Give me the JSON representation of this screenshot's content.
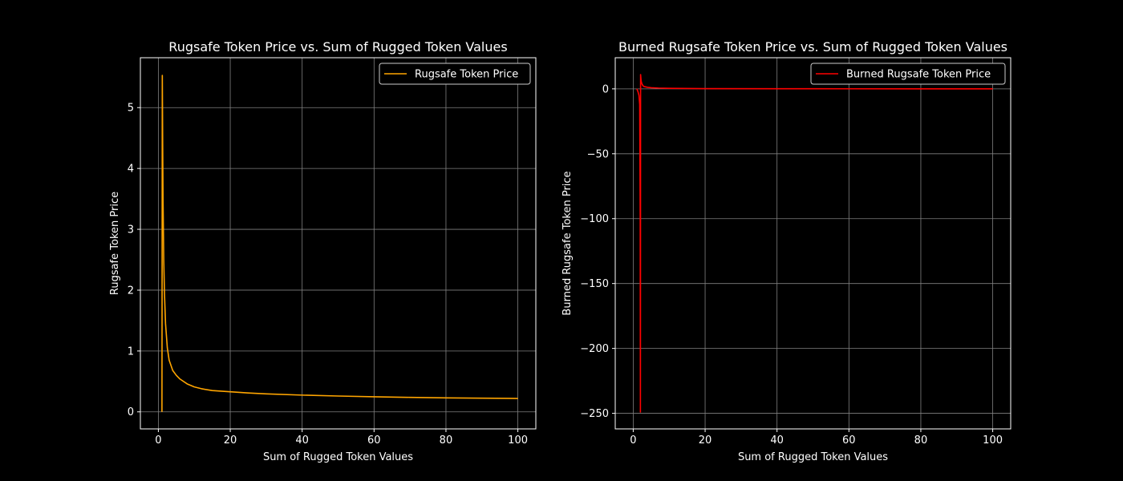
{
  "colors": {
    "background": "#000000",
    "grid": "#808080",
    "axes": "#ffffff",
    "text": "#ffffff"
  },
  "chart_data": [
    {
      "type": "line",
      "title": "Rugsafe Token Price vs. Sum of Rugged Token Values",
      "xlabel": "Sum of Rugged Token Values",
      "ylabel": "Rugsafe Token Price",
      "xlim": [
        -5,
        105
      ],
      "ylim": [
        -0.28,
        5.82
      ],
      "xticks": [
        0,
        20,
        40,
        60,
        80,
        100
      ],
      "xtick_labels": [
        "0",
        "20",
        "40",
        "60",
        "80",
        "100"
      ],
      "yticks": [
        0,
        1,
        2,
        3,
        4,
        5
      ],
      "ytick_labels": [
        "0",
        "1",
        "2",
        "3",
        "4",
        "5"
      ],
      "grid": true,
      "legend_position": "upper right",
      "series": [
        {
          "name": "Rugsafe Token Price",
          "color": "#ffa500",
          "x": [
            1.0,
            1.1,
            1.2,
            1.3,
            1.5,
            1.7,
            2,
            2.5,
            3,
            4,
            5,
            6,
            8,
            10,
            12,
            15,
            20,
            25,
            30,
            40,
            50,
            60,
            70,
            80,
            90,
            100
          ],
          "y": [
            0.0,
            5.53,
            4.4,
            3.5,
            2.5,
            1.95,
            1.45,
            1.05,
            0.85,
            0.68,
            0.6,
            0.54,
            0.46,
            0.41,
            0.38,
            0.35,
            0.33,
            0.31,
            0.295,
            0.275,
            0.26,
            0.248,
            0.238,
            0.23,
            0.225,
            0.22
          ]
        }
      ]
    },
    {
      "type": "line",
      "title": "Burned Rugsafe Token Price vs. Sum of Rugged Token Values",
      "xlabel": "Sum of Rugged Token Values",
      "ylabel": "Burned Rugsafe Token Price",
      "xlim": [
        -5,
        105
      ],
      "ylim": [
        -262,
        24
      ],
      "xticks": [
        0,
        20,
        40,
        60,
        80,
        100
      ],
      "xtick_labels": [
        "0",
        "20",
        "40",
        "60",
        "80",
        "100"
      ],
      "yticks": [
        0,
        -50,
        -100,
        -150,
        -200,
        -250
      ],
      "ytick_labels": [
        "0",
        "−50",
        "−100",
        "−150",
        "−200",
        "−250"
      ],
      "grid": true,
      "legend_position": "upper right",
      "series": [
        {
          "name": "Burned Rugsafe Token Price",
          "color": "#ff0000",
          "x": [
            1.0,
            1.3,
            1.6,
            1.8,
            1.95,
            2.0,
            2.05,
            2.2,
            2.4,
            2.7,
            3,
            4,
            5,
            7,
            10,
            20,
            40,
            60,
            80,
            100
          ],
          "y": [
            0.0,
            -2.0,
            -5.0,
            -12.0,
            -100.0,
            -249.0,
            11.0,
            6.0,
            4.0,
            2.5,
            1.8,
            1.2,
            0.9,
            0.6,
            0.4,
            0.2,
            0.1,
            0.07,
            0.05,
            0.04
          ]
        }
      ]
    }
  ]
}
